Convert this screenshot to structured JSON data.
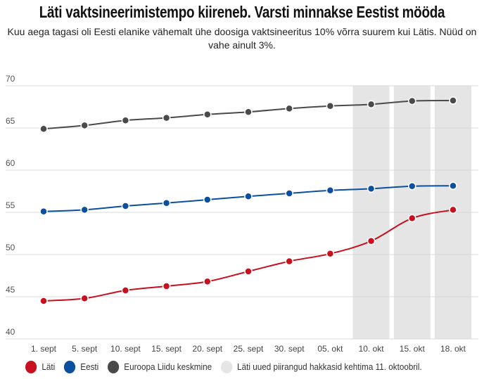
{
  "title": "Läti vaktsineerimistempo kiireneb. Varsti minnakse Eestist mööda",
  "subtitle": "Kuu aega tagasi oli Eesti elanike vähemalt ühe doosiga vaktsineeritus 10% võrra suurem kui Lätis. Nüüd on vahe ainult 3%.",
  "chart_data": {
    "type": "line",
    "categories": [
      "1. sept",
      "5. sept",
      "10. sept",
      "15. sept",
      "20. sept",
      "25. sept",
      "30. sept",
      "05. okt",
      "10. okt",
      "15. okt",
      "18. okt"
    ],
    "ylim": [
      40,
      70
    ],
    "yticks": [
      "40",
      "45",
      "50",
      "55",
      "60",
      "65",
      "70"
    ],
    "shaded_categories": [
      "10. okt",
      "15. okt",
      "18. okt"
    ],
    "series": [
      {
        "name": "Läti",
        "color": "#c8101e",
        "values": [
          44.5,
          44.8,
          45.75,
          46.25,
          46.8,
          48.0,
          49.2,
          50.1,
          51.6,
          54.3,
          55.3
        ]
      },
      {
        "name": "Eesti",
        "color": "#0a4fa0",
        "values": [
          55.1,
          55.3,
          55.75,
          56.1,
          56.5,
          56.9,
          57.25,
          57.6,
          57.8,
          58.1,
          58.15
        ]
      },
      {
        "name": "Euroopa Liidu keskmine",
        "color": "#4a4a4a",
        "values": [
          64.9,
          65.3,
          65.9,
          66.2,
          66.6,
          66.9,
          67.3,
          67.6,
          67.8,
          68.2,
          68.25
        ]
      }
    ],
    "shade_legend": "Läti uued piirangud hakkasid kehtima 11. oktoobril.",
    "shade_color": "#e5e5e5"
  }
}
